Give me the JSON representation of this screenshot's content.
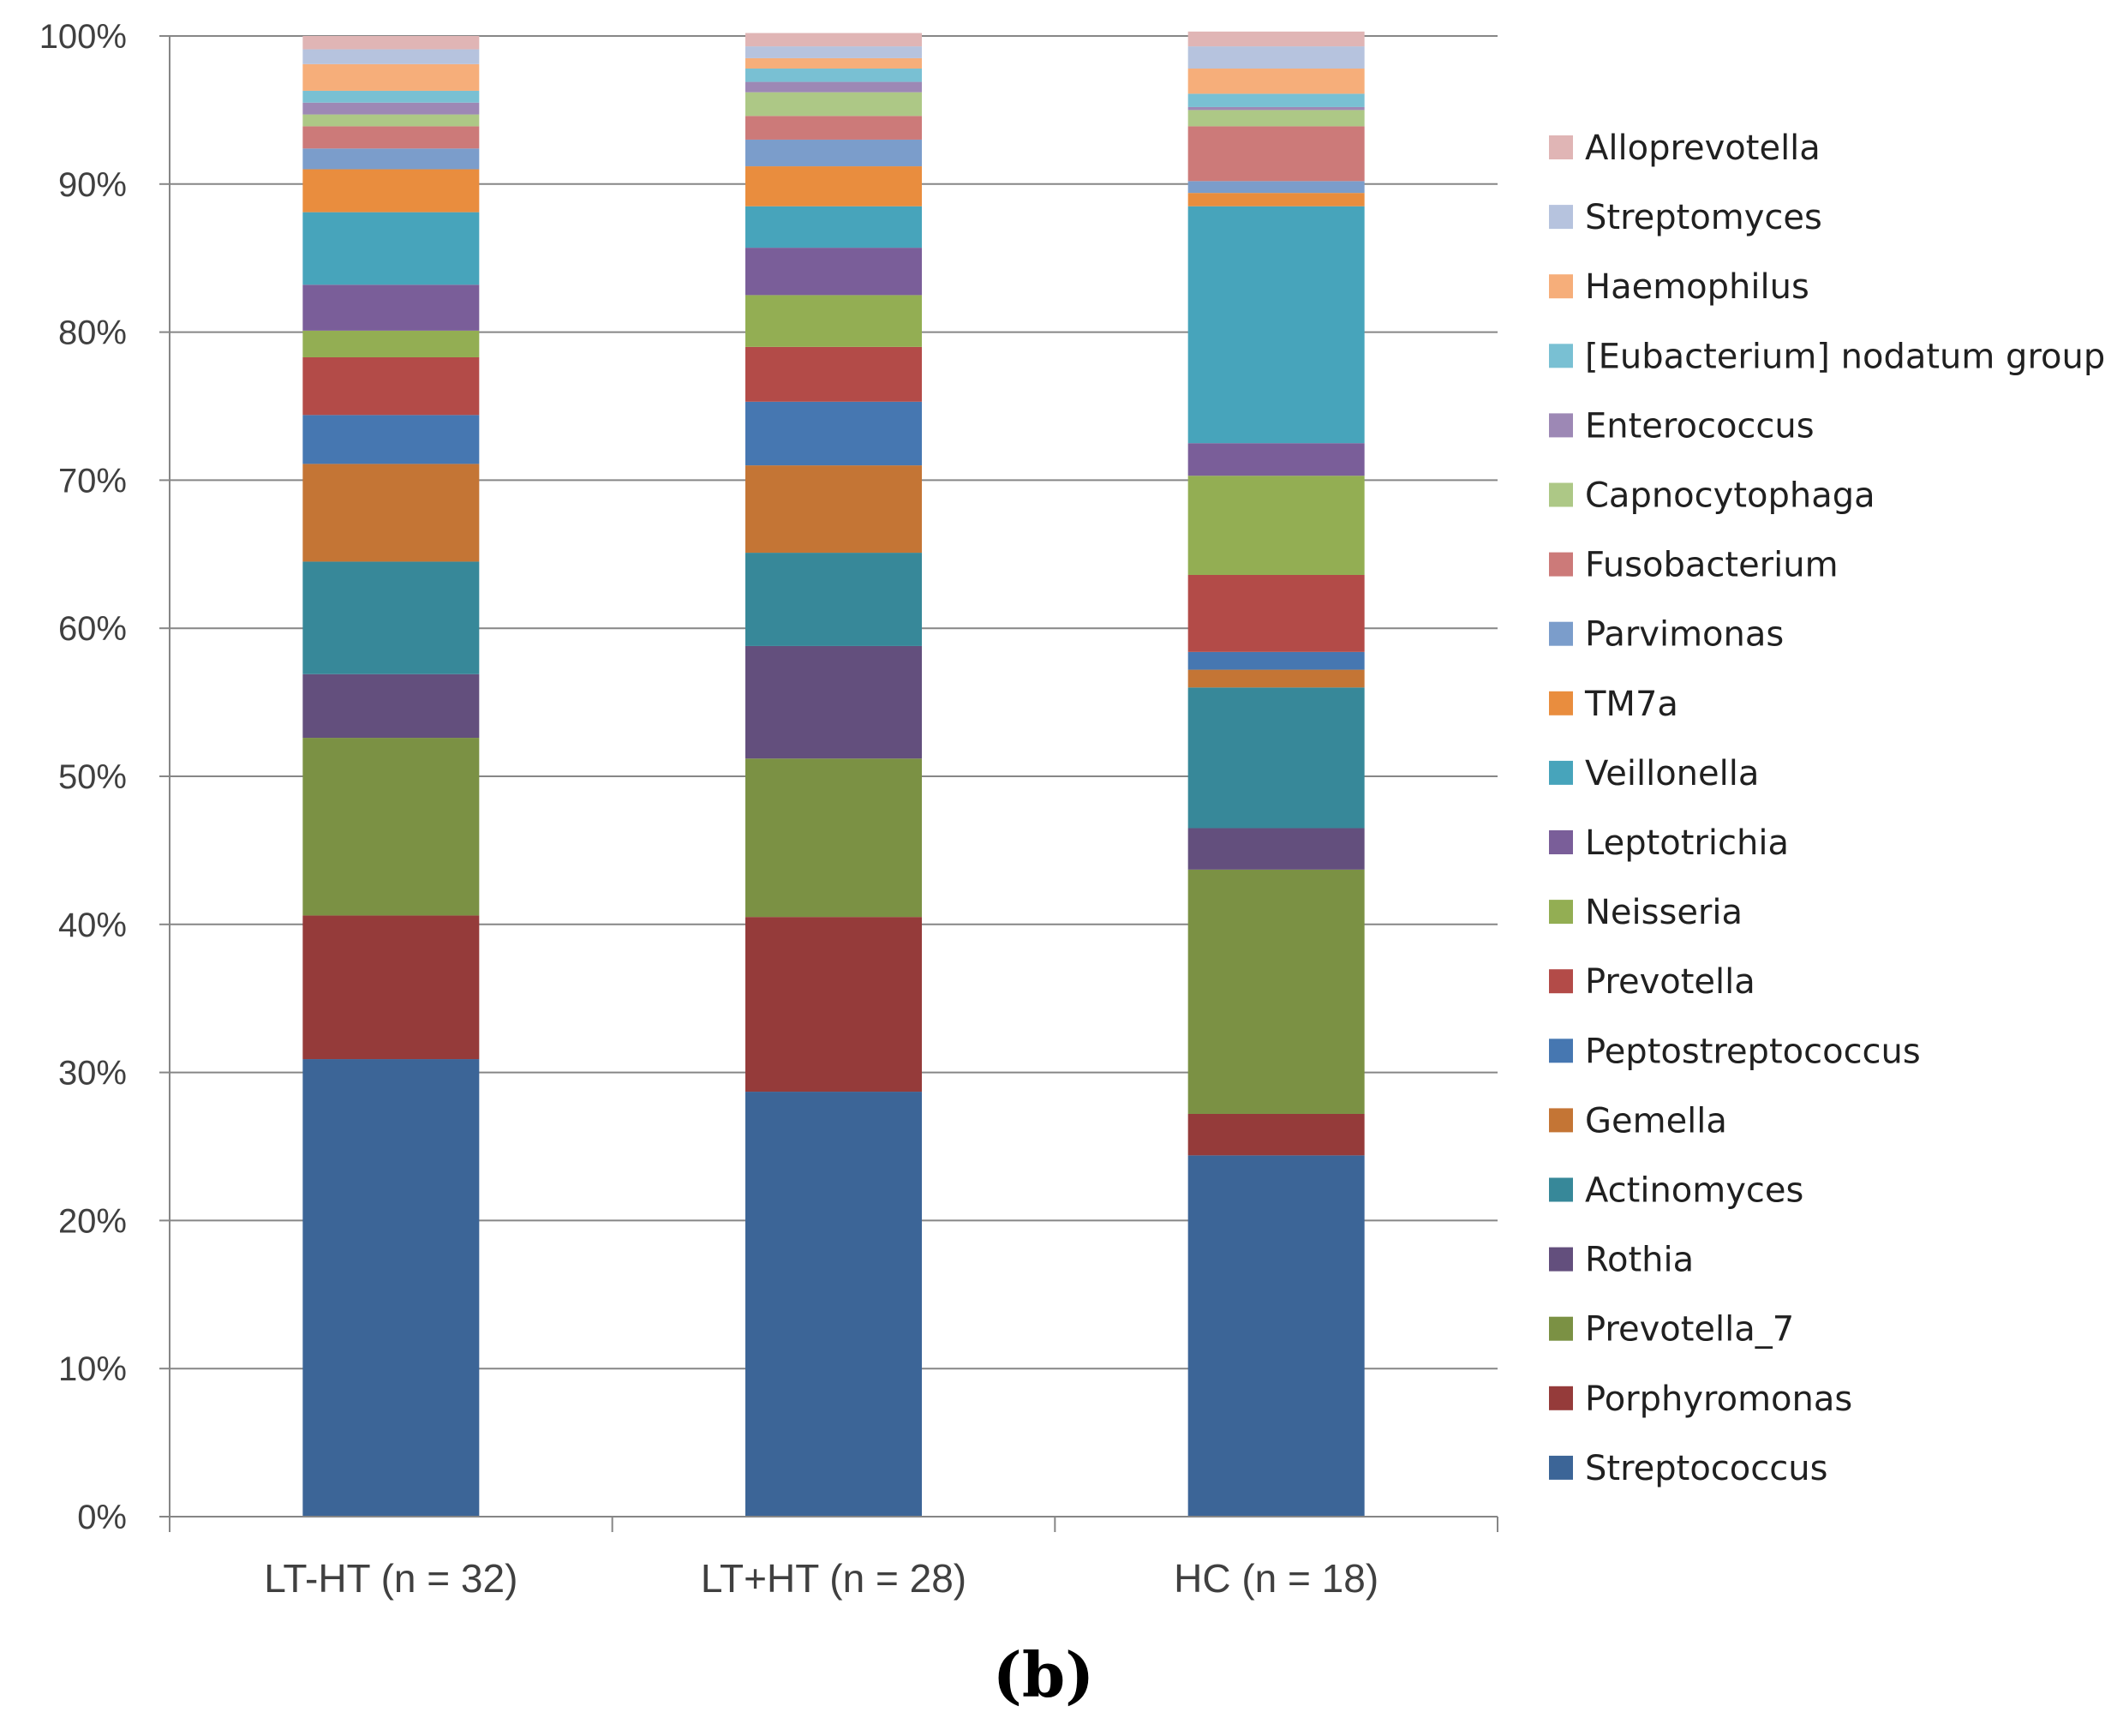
{
  "chart_data": {
    "type": "bar",
    "stacked": true,
    "percent": true,
    "title": "",
    "xlabel": "",
    "ylabel": "",
    "ylim": [
      0,
      100
    ],
    "yticks": [
      "0%",
      "10%",
      "20%",
      "30%",
      "40%",
      "50%",
      "60%",
      "70%",
      "80%",
      "90%",
      "100%"
    ],
    "categories": [
      "LT-HT (n = 32)",
      "LT+HT (n = 28)",
      "HC (n = 18)"
    ],
    "legend_position": "right",
    "caption": "(b)",
    "series": [
      {
        "name": "Streptococcus",
        "color": "#3C6597",
        "values": [
          30.9,
          28.7,
          24.4
        ]
      },
      {
        "name": "Porphyromonas",
        "color": "#953B3A",
        "values": [
          9.7,
          11.8,
          2.8
        ]
      },
      {
        "name": "Prevotella_7",
        "color": "#7B9144",
        "values": [
          12.0,
          10.7,
          16.5
        ]
      },
      {
        "name": "Rothia",
        "color": "#634F7D",
        "values": [
          4.3,
          7.6,
          2.8
        ]
      },
      {
        "name": "Actinomyces",
        "color": "#378899",
        "values": [
          7.6,
          6.3,
          9.5
        ]
      },
      {
        "name": "Gemella",
        "color": "#C47535",
        "values": [
          6.6,
          5.9,
          1.2
        ]
      },
      {
        "name": "Peptostreptococcus",
        "color": "#4677B1",
        "values": [
          3.3,
          4.3,
          1.2
        ]
      },
      {
        "name": "Prevotella",
        "color": "#B34B48",
        "values": [
          3.9,
          3.7,
          5.2
        ]
      },
      {
        "name": "Neisseria",
        "color": "#93AE53",
        "values": [
          1.8,
          3.5,
          6.7
        ]
      },
      {
        "name": "Leptotrichia",
        "color": "#7A5E99",
        "values": [
          3.1,
          3.2,
          2.2
        ]
      },
      {
        "name": "Veillonella",
        "color": "#47A4BB",
        "values": [
          4.9,
          2.8,
          16.0
        ]
      },
      {
        "name": "TM7a",
        "color": "#E98D3E",
        "values": [
          2.9,
          2.7,
          0.9
        ]
      },
      {
        "name": "Parvimonas",
        "color": "#7B9DCB",
        "values": [
          1.4,
          1.8,
          0.8
        ]
      },
      {
        "name": "Fusobacterium",
        "color": "#CC7A79",
        "values": [
          1.5,
          1.6,
          3.7
        ]
      },
      {
        "name": "Capnocytophaga",
        "color": "#ADC886",
        "values": [
          0.8,
          1.6,
          1.1
        ]
      },
      {
        "name": "Enterococcus",
        "color": "#9D88B5",
        "values": [
          0.8,
          0.7,
          0.2
        ]
      },
      {
        "name": "[Eubacterium] nodatum group",
        "color": "#79C0D3",
        "values": [
          0.8,
          0.9,
          0.9
        ]
      },
      {
        "name": "Haemophilus",
        "color": "#F6AE7A",
        "values": [
          1.8,
          0.7,
          1.7
        ]
      },
      {
        "name": "Streptomyces",
        "color": "#B6C3DE",
        "values": [
          1.0,
          0.8,
          1.5
        ]
      },
      {
        "name": "Alloprevotella",
        "color": "#E0B5B5",
        "values": [
          0.9,
          0.9,
          1.0
        ]
      }
    ]
  }
}
